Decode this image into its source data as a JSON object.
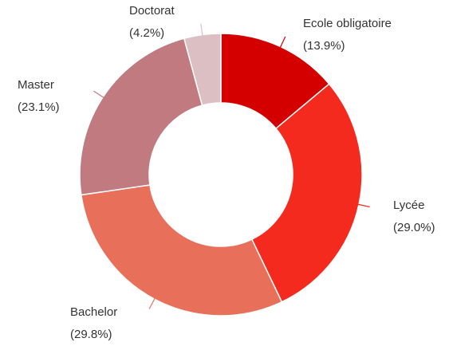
{
  "chart_data": {
    "type": "donut",
    "categories": [
      "Ecole obligatoire",
      "Lycée",
      "Bachelor",
      "Master",
      "Doctorat"
    ],
    "values": [
      13.9,
      29.0,
      29.8,
      23.1,
      4.2
    ],
    "value_labels": [
      "(13.9%)",
      "(29.0%)",
      "(29.8%)",
      "(23.1%)",
      "(4.2%)"
    ],
    "colors": [
      "#d40000",
      "#f52a1e",
      "#e8705a",
      "#c07a80",
      "#dcbfc3"
    ]
  }
}
